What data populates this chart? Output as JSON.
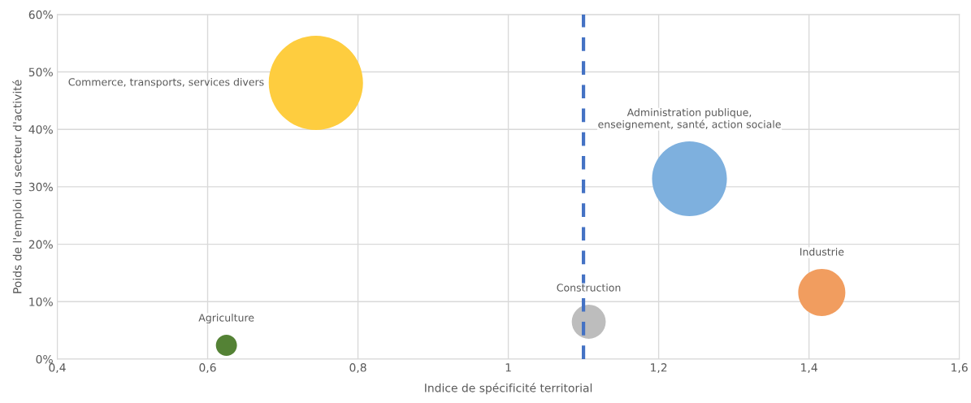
{
  "chart_data": {
    "type": "bubble",
    "xlabel": "Indice de spécificité territorial",
    "ylabel": "Poids de l'emploi du secteur d'activité",
    "xlim": [
      0.4,
      1.6
    ],
    "xticks": [
      {
        "value": 0.4,
        "label": "0,4"
      },
      {
        "value": 0.6,
        "label": "0,6"
      },
      {
        "value": 0.8,
        "label": "0,8"
      },
      {
        "value": 1,
        "label": "1"
      },
      {
        "value": 1.2,
        "label": "1,2"
      },
      {
        "value": 1.4,
        "label": "1,4"
      },
      {
        "value": 1.6,
        "label": "1,6"
      }
    ],
    "ylim": [
      0,
      60
    ],
    "yticks": [
      {
        "value": 0,
        "label": "0%"
      },
      {
        "value": 10,
        "label": "10%"
      },
      {
        "value": 20,
        "label": "20%"
      },
      {
        "value": 30,
        "label": "30%"
      },
      {
        "value": 40,
        "label": "40%"
      },
      {
        "value": 50,
        "label": "50%"
      },
      {
        "value": 60,
        "label": "60%"
      }
    ],
    "grid": true,
    "legend": false,
    "series": [
      {
        "name": "Commerce, transports, services divers",
        "color": "#fecd3f",
        "x": [
          0.744
        ],
        "values": [
          48.1
        ],
        "sizes": [
          1
        ]
      },
      {
        "name": "Administration publique,\nenseignement, santé, action sociale",
        "color": "#7eb0de",
        "x": [
          1.241
        ],
        "values": [
          31.4
        ],
        "sizes": [
          0.63
        ]
      },
      {
        "name": "Industrie",
        "color": "#f19d5f",
        "x": [
          1.417
        ],
        "values": [
          11.6
        ],
        "sizes": [
          0.25
        ]
      },
      {
        "name": "Construction",
        "color": "#bdbdbd",
        "x": [
          1.107
        ],
        "values": [
          6.5
        ],
        "sizes": [
          0.13
        ]
      },
      {
        "name": "Agriculture",
        "color": "#548235",
        "x": [
          0.625
        ],
        "values": [
          2.4
        ],
        "sizes": [
          0.05
        ]
      }
    ],
    "ref_lines": [
      {
        "axis": "x",
        "value": 1.1,
        "color": "#4472c4",
        "line_style": "dashed"
      }
    ]
  }
}
